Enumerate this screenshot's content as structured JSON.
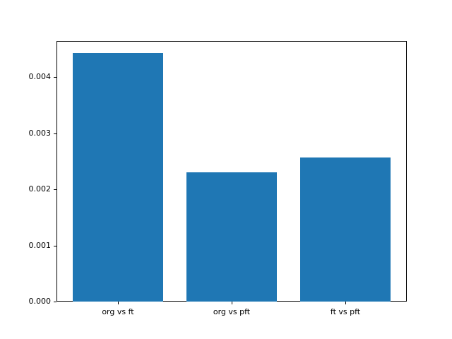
{
  "chart_data": {
    "type": "bar",
    "title": "",
    "xlabel": "",
    "ylabel": "",
    "categories": [
      "org vs ft",
      "org vs pft",
      "ft vs pft"
    ],
    "values": [
      0.00443,
      0.0023,
      0.00257
    ],
    "ylim": [
      0,
      0.004646
    ],
    "yticks": {
      "values": [
        0,
        0.001,
        0.002,
        0.003,
        0.004
      ],
      "labels": [
        "0.000",
        "0.001",
        "0.002",
        "0.003",
        "0.004"
      ]
    },
    "grid": false,
    "legend": null,
    "colors": {
      "bar": "#1f77b4",
      "spine": "#000000",
      "text": "#000000",
      "background": "#ffffff"
    }
  }
}
